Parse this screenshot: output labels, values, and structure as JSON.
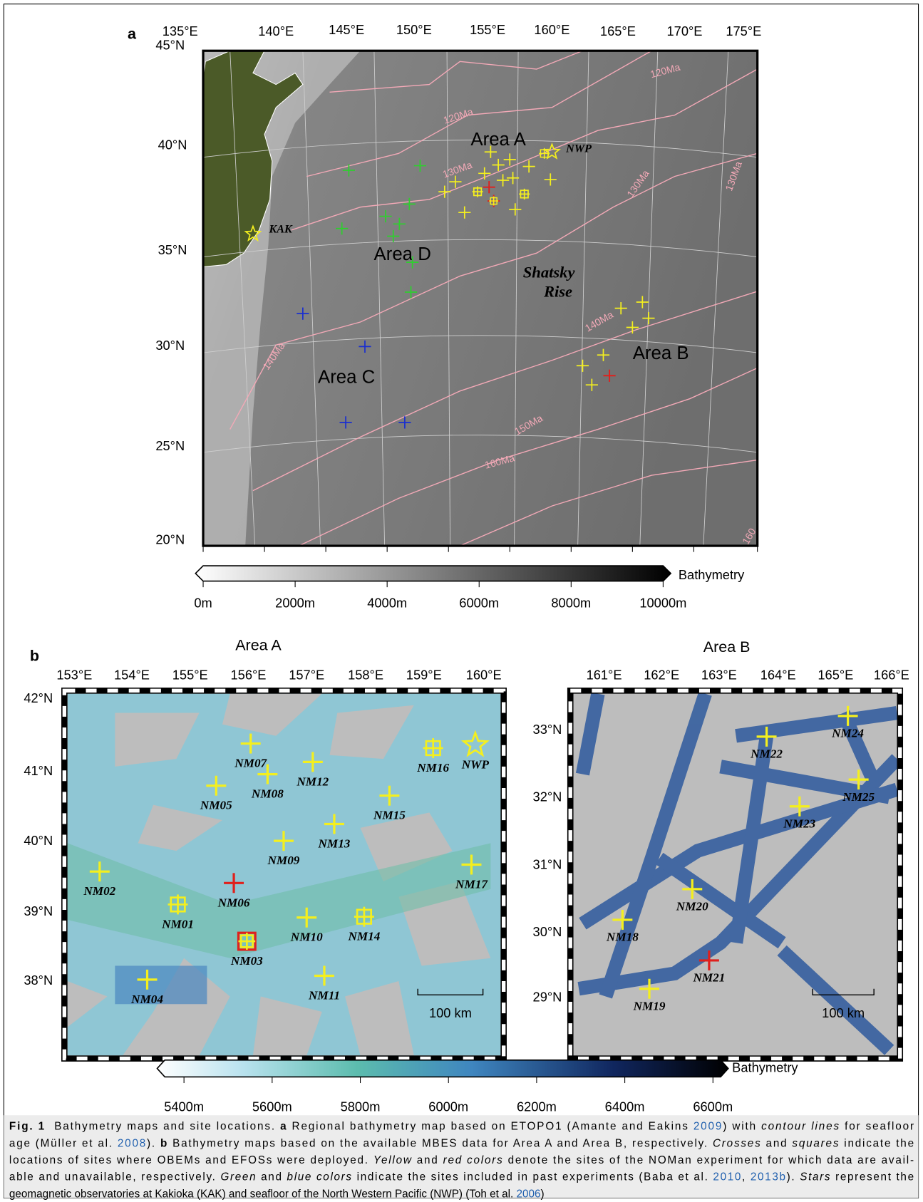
{
  "panel_a": {
    "label": "a",
    "lon_labels": [
      "135°E",
      "140°E",
      "145°E",
      "150°E",
      "155°E",
      "160°E",
      "165°E",
      "170°E",
      "175°E"
    ],
    "lat_labels": [
      "45°N",
      "40°N",
      "35°N",
      "30°N",
      "25°N",
      "20°N"
    ],
    "area_labels": [
      "Area A",
      "Area D",
      "Area C",
      "Area B"
    ],
    "shatsky": [
      "Shatsky",
      "Rise"
    ],
    "stations": [
      "KAK",
      "NWP"
    ],
    "age_labels": [
      "120Ma",
      "120Ma",
      "130Ma",
      "130Ma",
      "130Ma",
      "140Ma",
      "140Ma",
      "150Ma",
      "160Ma",
      "160"
    ],
    "colorbar": {
      "label": "Bathymetry",
      "ticks": [
        "0m",
        "2000m",
        "4000m",
        "6000m",
        "8000m",
        "10000m"
      ]
    }
  },
  "panel_b": {
    "label": "b",
    "area_a": {
      "title": "Area A",
      "lon_labels": [
        "153°E",
        "154°E",
        "155°E",
        "156°E",
        "157°E",
        "158°E",
        "159°E",
        "160°E"
      ],
      "lat_labels": [
        "42°N",
        "41°N",
        "40°N",
        "39°N",
        "38°N"
      ],
      "sites": [
        "NM01",
        "NM02",
        "NM03",
        "NM04",
        "NM05",
        "NM06",
        "NM07",
        "NM08",
        "NM09",
        "NM10",
        "NM11",
        "NM12",
        "NM13",
        "NM14",
        "NM15",
        "NM16",
        "NWP",
        "NM17"
      ],
      "scale": "100 km"
    },
    "area_b": {
      "title": "Area B",
      "lon_labels": [
        "161°E",
        "162°E",
        "163°E",
        "164°E",
        "165°E",
        "166°E"
      ],
      "lat_labels": [
        "33°N",
        "32°N",
        "31°N",
        "30°N",
        "29°N"
      ],
      "sites": [
        "NM18",
        "NM19",
        "NM20",
        "NM21",
        "NM22",
        "NM23",
        "NM24",
        "NM25"
      ],
      "scale": "100 km"
    },
    "colorbar": {
      "label": "Bathymetry",
      "ticks": [
        "5400m",
        "5600m",
        "5800m",
        "6000m",
        "6200m",
        "6400m",
        "6600m"
      ]
    }
  },
  "caption": {
    "lines": [
      [
        "Fig. 1",
        "  Bathymetry maps and site locations. ",
        "a",
        " Regional bathymetry map based on ETOPO1 (Amante and Eakins ",
        "2009",
        ") with ",
        "contour lines",
        " for seafloor"
      ],
      [
        "age (Müller et al. ",
        "2008",
        "). ",
        "b",
        " Bathymetry maps based on the available MBES data for Area A and Area B, respectively. ",
        "Crosses",
        " and ",
        "squares",
        " indicate the"
      ],
      [
        "locations of sites where OBEMs and EFOSs were deployed. ",
        "Yellow",
        " and ",
        "red colors",
        " denote the sites of the NOMan experiment for which data are avail-"
      ],
      [
        "able and unavailable, respectively. ",
        "Green",
        " and ",
        "blue colors",
        " indicate the sites included in past experiments (Baba et al. ",
        "2010",
        ", ",
        "2013b",
        "). ",
        "Stars",
        " represent the"
      ],
      [
        "geomagnetic observatories at Kakioka (KAK) and seafloor of the North Western Pacific (NWP) (Toh et al. ",
        "2006",
        ")"
      ]
    ]
  }
}
